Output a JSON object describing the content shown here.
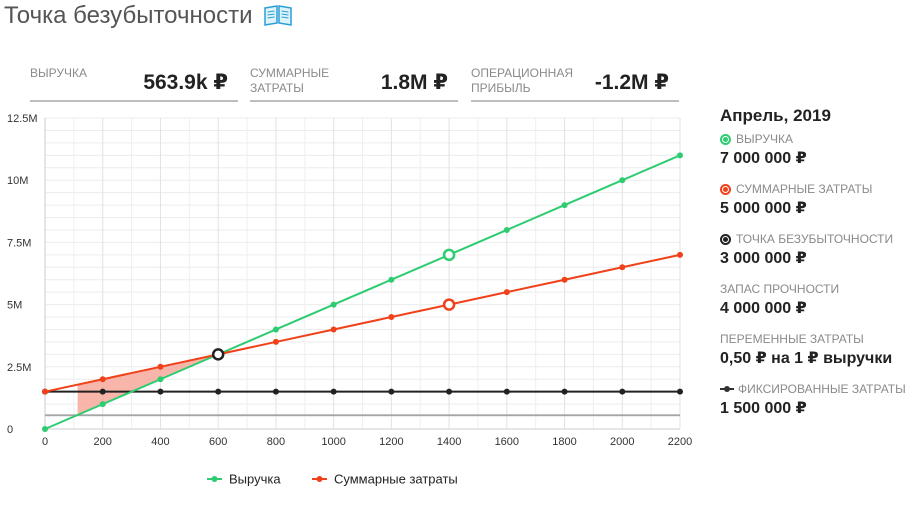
{
  "page": {
    "title": "Точка безубыточности"
  },
  "kpis": [
    {
      "label": "ВЫРУЧКА",
      "value": "563.9k ₽"
    },
    {
      "label": "СУММАРНЫЕ\nЗАТРАТЫ",
      "value": "1.8M ₽"
    },
    {
      "label": "ОПЕРАЦИОННАЯ\nПРИБЫЛЬ",
      "value": "-1.2M ₽"
    }
  ],
  "side": {
    "title": "Апрель, 2019",
    "items": [
      {
        "label": "ВЫРУЧКА",
        "value": "7 000 000 ₽",
        "icon": "green-dot-icon",
        "color": "#2ecc71"
      },
      {
        "label": "СУММАРНЫЕ ЗАТРАТЫ",
        "value": "5 000 000 ₽",
        "icon": "red-dot-icon",
        "color": "#f0411a"
      },
      {
        "label": "ТОЧКА БЕЗУБЫТОЧНОСТИ",
        "value": "3 000 000 ₽",
        "icon": "black-dot-icon",
        "color": "#222222"
      },
      {
        "label": "ЗАПАС ПРОЧНОСТИ",
        "value": "4 000 000 ₽",
        "icon": "",
        "color": ""
      },
      {
        "label": "ПЕРЕМЕННЫЕ ЗАТРАТЫ",
        "value": "0,50 ₽ на 1 ₽ выручки",
        "icon": "",
        "color": ""
      },
      {
        "label": "ФИКСИРОВАННЫЕ ЗАТРАТЫ",
        "value": "1 500 000 ₽",
        "icon": "line-dot-icon",
        "color": "#333333"
      }
    ]
  },
  "chart_data": {
    "type": "line",
    "x": [
      0,
      200,
      400,
      600,
      800,
      1000,
      1200,
      1400,
      1600,
      1800,
      2000,
      2200
    ],
    "xticks": [
      "0",
      "200",
      "400",
      "600",
      "800",
      "1000",
      "1200",
      "1400",
      "1600",
      "1800",
      "2000",
      "2200"
    ],
    "xlim": [
      0,
      2200
    ],
    "yticks": [
      {
        "value": 0,
        "label": "0"
      },
      {
        "value": 2.5,
        "label": "2.5M"
      },
      {
        "value": 5,
        "label": "5M"
      },
      {
        "value": 7.5,
        "label": "7.5M"
      },
      {
        "value": 10,
        "label": "10M"
      },
      {
        "value": 12.5,
        "label": "12.5M"
      }
    ],
    "ylim": [
      0,
      12.5
    ],
    "grid": true,
    "series": [
      {
        "name": "Выручка",
        "color": "#2ecc71",
        "values": [
          0,
          1,
          2,
          3,
          4,
          5,
          6,
          7,
          8,
          9,
          10,
          11
        ]
      },
      {
        "name": "Суммарные затраты",
        "color": "#f0411a",
        "values": [
          1.5,
          2,
          2.5,
          3,
          3.5,
          4,
          4.5,
          5,
          5.5,
          6,
          6.5,
          7
        ]
      }
    ],
    "fixed_costs": {
      "color": "#222222",
      "values": [
        1.5,
        1.5,
        1.5,
        1.5,
        1.5,
        1.5,
        1.5,
        1.5,
        1.5,
        1.5,
        1.5,
        1.5
      ]
    },
    "gray_line": {
      "value": 0.56,
      "color": "#9a9a9a"
    },
    "loss_area": {
      "x_start": 113,
      "x_end": 600,
      "color": "#f7a89a"
    },
    "highlights": [
      {
        "x": 1400,
        "y": 7,
        "color": "#2ecc71"
      },
      {
        "x": 1400,
        "y": 5,
        "color": "#f0411a"
      }
    ],
    "breakeven": {
      "x": 600,
      "y": 3,
      "color": "#222222"
    },
    "legend": "bottom-center"
  }
}
